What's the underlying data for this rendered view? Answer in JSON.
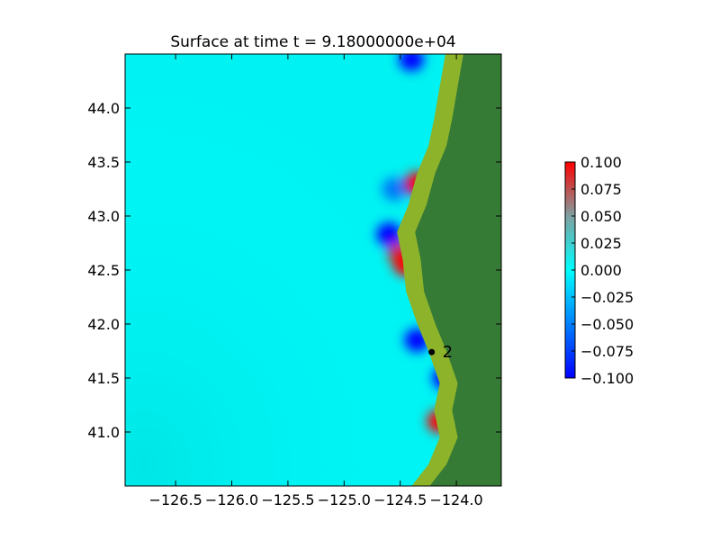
{
  "chart_data": {
    "type": "heatmap",
    "title": "Surface at time t = 9.18000000e+04",
    "xlabel": "",
    "ylabel": "",
    "xlim": [
      -126.95,
      -123.6
    ],
    "ylim": [
      40.5,
      44.5
    ],
    "x_ticks": [
      -126.5,
      -126.0,
      -125.5,
      -125.0,
      -124.5,
      -124.0
    ],
    "x_tick_labels": [
      "−126.5",
      "−126.0",
      "−125.5",
      "−125.0",
      "−124.5",
      "−124.0"
    ],
    "y_ticks": [
      41.0,
      41.5,
      42.0,
      42.5,
      43.0,
      43.5,
      44.0
    ],
    "y_tick_labels": [
      "41.0",
      "41.5",
      "42.0",
      "42.5",
      "43.0",
      "43.5",
      "44.0"
    ],
    "colorbar": {
      "min": -0.1,
      "max": 0.1,
      "ticks": [
        0.1,
        0.075,
        0.05,
        0.025,
        0.0,
        -0.025,
        -0.05,
        -0.075,
        -0.1
      ],
      "tick_labels": [
        "0.100",
        "0.075",
        "0.050",
        "0.025",
        "0.000",
        "−0.025",
        "−0.050",
        "−0.075",
        "−0.100"
      ],
      "colors": [
        "#0000ff",
        "#00ffff",
        "#ff0000"
      ]
    },
    "land_color": "#357a35",
    "coast_color": "#8db32a",
    "ocean_base_color": "#00f2f2",
    "coastline": [
      [
        -124.05,
        44.5
      ],
      [
        -124.1,
        44.2
      ],
      [
        -124.15,
        43.9
      ],
      [
        -124.2,
        43.65
      ],
      [
        -124.3,
        43.4
      ],
      [
        -124.38,
        43.1
      ],
      [
        -124.48,
        42.85
      ],
      [
        -124.43,
        42.6
      ],
      [
        -124.4,
        42.3
      ],
      [
        -124.3,
        42.0
      ],
      [
        -124.2,
        41.75
      ],
      [
        -124.1,
        41.45
      ],
      [
        -124.15,
        41.2
      ],
      [
        -124.1,
        40.95
      ],
      [
        -124.2,
        40.7
      ],
      [
        -124.35,
        40.5
      ]
    ],
    "anomalies": [
      {
        "x": -124.6,
        "y": 42.83,
        "value": -0.1
      },
      {
        "x": -124.45,
        "y": 42.55,
        "value": 0.1
      },
      {
        "x": -124.35,
        "y": 41.85,
        "value": -0.1
      },
      {
        "x": -124.15,
        "y": 41.1,
        "value": 0.1
      },
      {
        "x": -124.1,
        "y": 41.5,
        "value": -0.1
      },
      {
        "x": -124.4,
        "y": 44.45,
        "value": -0.1
      },
      {
        "x": -124.35,
        "y": 43.3,
        "value": 0.1
      },
      {
        "x": -124.5,
        "y": 42.65,
        "value": 0.08
      },
      {
        "x": -124.55,
        "y": 43.25,
        "value": -0.05
      }
    ],
    "markers": [
      {
        "label": "2",
        "x": -124.22,
        "y": 41.74
      }
    ]
  }
}
